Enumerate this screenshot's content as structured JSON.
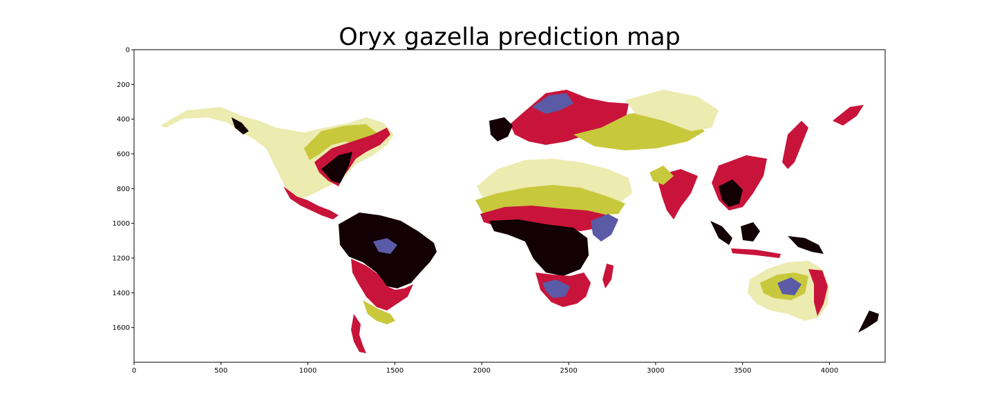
{
  "chart_data": {
    "type": "heatmap",
    "title": "Oryx gazella prediction map",
    "xlabel": "",
    "ylabel": "",
    "xlim": [
      0,
      4320
    ],
    "ylim": [
      1800,
      0
    ],
    "x_ticks": [
      "0",
      "500",
      "1000",
      "1500",
      "2000",
      "2500",
      "3000",
      "3500",
      "4000"
    ],
    "y_ticks": [
      "0",
      "200",
      "400",
      "600",
      "800",
      "1000",
      "1200",
      "1400",
      "1600"
    ],
    "grid": false,
    "legend": "none",
    "palette": {
      "very_high": "#120004",
      "high": "#c8143a",
      "medium": "#5a5aa6",
      "low": "#c8c83c",
      "very_low": "#ecebb0",
      "none": "#ffffff"
    }
  }
}
